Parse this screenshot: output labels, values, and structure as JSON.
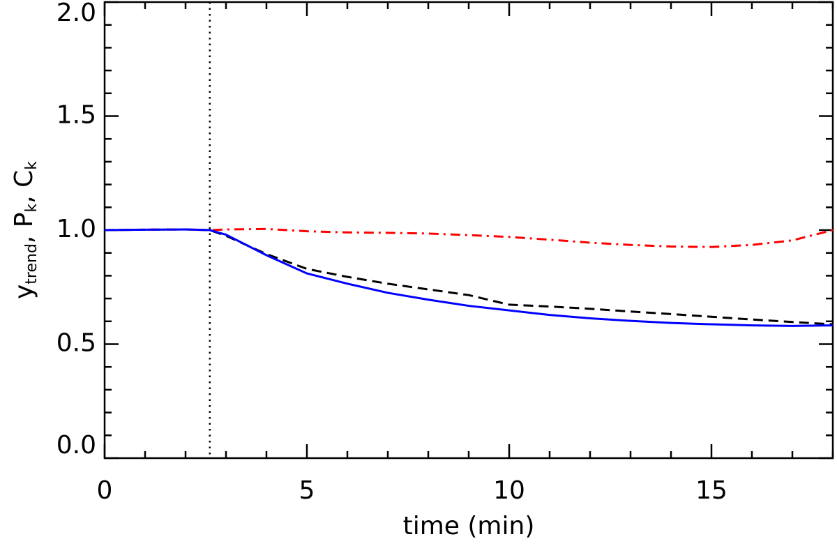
{
  "chart_data": {
    "type": "line",
    "xlabel": "time (min)",
    "ylabel": [
      {
        "base": "y",
        "sub": "trend",
        "tail": ", "
      },
      {
        "base": "P",
        "sub": "k",
        "tail": ", "
      },
      {
        "base": "C",
        "sub": "k",
        "tail": ""
      }
    ],
    "x": [
      0,
      1,
      2,
      2.6,
      3,
      4,
      5,
      6,
      7,
      8,
      9,
      10,
      11,
      12,
      13,
      14,
      15,
      16,
      17,
      18
    ],
    "series": [
      {
        "color": "#000000",
        "style": "dashed",
        "values": [
          1.0,
          1.002,
          1.003,
          1.0,
          0.975,
          0.895,
          0.83,
          0.795,
          0.765,
          0.74,
          0.715,
          0.673,
          0.665,
          0.655,
          0.643,
          0.632,
          0.62,
          0.608,
          0.597,
          0.587
        ]
      },
      {
        "color": "#ff0000",
        "style": "dashdot",
        "values": [
          1.0,
          1.002,
          1.003,
          1.0,
          1.003,
          1.005,
          0.995,
          0.99,
          0.988,
          0.985,
          0.978,
          0.97,
          0.958,
          0.945,
          0.935,
          0.928,
          0.926,
          0.935,
          0.955,
          1.0
        ]
      },
      {
        "color": "#0000ff",
        "style": "solid",
        "values": [
          1.0,
          1.002,
          1.003,
          1.0,
          0.98,
          0.89,
          0.81,
          0.765,
          0.725,
          0.695,
          0.668,
          0.648,
          0.628,
          0.613,
          0.602,
          0.593,
          0.587,
          0.582,
          0.58,
          0.582
        ]
      }
    ],
    "vline": {
      "x": 2.6,
      "color": "#000000",
      "style": "dotted"
    },
    "xlim": [
      0,
      18
    ],
    "xticks": [
      0,
      5,
      10,
      15
    ],
    "ylim": [
      0,
      2.0
    ],
    "yticks": [
      {
        "value": 0,
        "label": "0.0"
      },
      0.5,
      {
        "value": 1.0,
        "label": "1.0"
      },
      1.5,
      {
        "value": 2.0,
        "label": "2.0"
      }
    ],
    "minor_divisions": {
      "x": 5,
      "y": 5
    }
  }
}
